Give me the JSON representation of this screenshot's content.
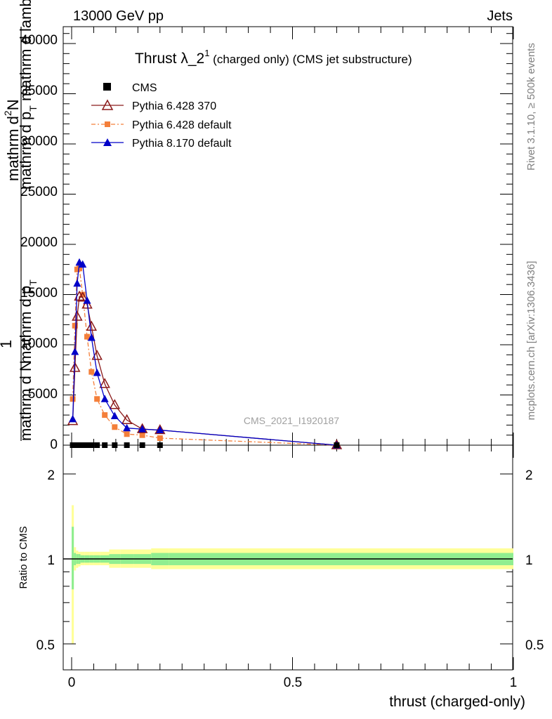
{
  "header": {
    "left": "13000 GeV pp",
    "right": "Jets",
    "side_top": "Rivet 3.1.10, ≥ 500k events",
    "side_bottom": "mcplots.cern.ch [arXiv:1306.3436]",
    "watermark": "CMS_2021_I1920187"
  },
  "main_plot": {
    "title_main": "Thrust λ_2",
    "title_sup": "1",
    "title_tail": " (charged only) (CMS jet substructure)",
    "ylabel_frac_1": "1",
    "ylabel_numerator_top": "mathrm d",
    "ylabel_numerator_sup": "2",
    "ylabel_numerator_n": "N",
    "ylabel_line_a": "mathrm d p",
    "ylabel_line_a_sub": "T",
    "ylabel_line_a_tail": " mathrm d lambda",
    "ylabel_denom_a": "mathrm d N",
    "ylabel_denom_b": "mathrm d p",
    "ylabel_denom_b_sub": "T",
    "yticks": [
      "0",
      "5000",
      "10000",
      "15000",
      "20000",
      "25000",
      "30000",
      "35000",
      "40000"
    ]
  },
  "ratio_plot": {
    "ylabel": "Ratio to CMS",
    "yticks": [
      "0.5",
      "1",
      "2"
    ],
    "xticks": [
      "0",
      "0.5",
      "1"
    ],
    "xlabel": "thrust (charged-only)"
  },
  "legend": {
    "placement": "top-left",
    "entries": [
      "CMS",
      "Pythia 6.428 370",
      "Pythia 6.428 default",
      "Pythia 8.170 default"
    ]
  },
  "colors": {
    "cms": "#000000",
    "p6_370": "#8b1a1a",
    "p6_default": "#f47f3a",
    "p8_default": "#0000c8",
    "band_inner": "#90ee90",
    "band_outer": "#ffff99"
  },
  "chart_data": [
    {
      "type": "line",
      "xlim": [
        0,
        1
      ],
      "ylim": [
        0,
        40000
      ],
      "x": [
        0.0025,
        0.0075,
        0.0125,
        0.0175,
        0.025,
        0.035,
        0.045,
        0.0575,
        0.075,
        0.0975,
        0.125,
        0.16,
        0.2,
        0.6
      ],
      "series": [
        {
          "name": "CMS",
          "values": [
            0,
            0,
            0,
            0,
            0,
            0,
            0,
            0,
            0,
            0,
            0,
            0,
            0,
            0
          ]
        },
        {
          "name": "Pythia 6.428 370",
          "values": [
            2400,
            7700,
            12800,
            14800,
            14700,
            14000,
            11800,
            8900,
            6100,
            4000,
            2500,
            1600,
            1500,
            0
          ]
        },
        {
          "name": "Pythia 6.428 default",
          "values": [
            4600,
            11900,
            17500,
            17600,
            15000,
            10800,
            7300,
            4600,
            3000,
            1800,
            1100,
            1000,
            700,
            0
          ]
        },
        {
          "name": "Pythia 8.170 default",
          "values": [
            2600,
            9300,
            16100,
            18200,
            18000,
            14400,
            10700,
            7200,
            4600,
            2900,
            1700,
            1600,
            1500,
            0
          ]
        }
      ]
    },
    {
      "type": "area",
      "xlim": [
        0,
        1
      ],
      "ylim": [
        0.4,
        2.4
      ],
      "ylabel": "Ratio to CMS",
      "xlabel": "thrust (charged-only)",
      "bin_edges": [
        0,
        0.005,
        0.01,
        0.015,
        0.02,
        0.03,
        0.04,
        0.05,
        0.065,
        0.085,
        0.11,
        0.14,
        0.18,
        0.22,
        1.0
      ],
      "band_inner": {
        "lo": [
          0.78,
          0.95,
          0.96,
          0.96,
          0.97,
          0.97,
          0.97,
          0.97,
          0.97,
          0.96,
          0.96,
          0.96,
          0.95,
          0.95
        ],
        "hi": [
          1.3,
          1.05,
          1.04,
          1.04,
          1.03,
          1.03,
          1.03,
          1.03,
          1.03,
          1.04,
          1.04,
          1.04,
          1.05,
          1.05
        ]
      },
      "band_outer": {
        "lo": [
          0.5,
          0.91,
          0.93,
          0.94,
          0.95,
          0.95,
          0.95,
          0.95,
          0.95,
          0.93,
          0.93,
          0.93,
          0.92,
          0.92
        ],
        "hi": [
          1.55,
          1.1,
          1.07,
          1.06,
          1.06,
          1.06,
          1.06,
          1.06,
          1.06,
          1.08,
          1.08,
          1.08,
          1.09,
          1.09
        ]
      }
    }
  ]
}
